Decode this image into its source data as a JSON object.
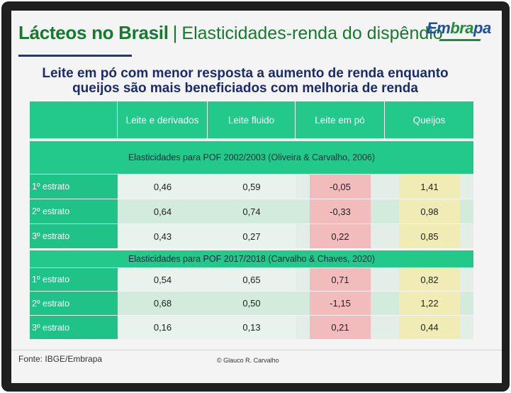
{
  "title": {
    "bold": "Lácteos no Brasil",
    "separator": "|",
    "light": "Elasticidades-renda do dispêndio"
  },
  "logo": {
    "text_main": "Em",
    "text_accent": "bra",
    "text_end": "pa"
  },
  "subtitle": {
    "line1": "Leite em pó com menor resposta a aumento de renda enquanto",
    "line2": "queijos são mais beneficiados com melhoria de renda"
  },
  "table": {
    "headers": [
      "Leite e derivados",
      "Leite fluido",
      "Leite em pó",
      "Queijos"
    ],
    "section1": {
      "title": "Elasticidades para POF 2002/2003 (Oliveira & Carvalho, 2006)",
      "rows": [
        {
          "label": "1º estrato",
          "values": [
            "0,46",
            "0,59",
            "-0,05",
            "1,41"
          ]
        },
        {
          "label": "2º estrato",
          "values": [
            "0,64",
            "0,74",
            "-0,33",
            "0,98"
          ]
        },
        {
          "label": "3º estrato",
          "values": [
            "0,43",
            "0,27",
            "0,22",
            "0,85"
          ]
        }
      ]
    },
    "section2": {
      "title": "Elasticidades para POF 2017/2018 (Carvalho & Chaves, 2020)",
      "rows": [
        {
          "label": "1º estrato",
          "values": [
            "0,54",
            "0,65",
            "0,71",
            "0,82"
          ]
        },
        {
          "label": "2º estrato",
          "values": [
            "0,68",
            "0,50",
            "-1,15",
            "1,22"
          ]
        },
        {
          "label": "3º estrato",
          "values": [
            "0,16",
            "0,13",
            "0,21",
            "0,44"
          ]
        }
      ]
    }
  },
  "footer": {
    "source": "Fonte: IBGE/Embrapa",
    "credit": "© Glauco R. Carvalho"
  },
  "colors": {
    "header_green": "#22c98a",
    "title_green": "#157a2e",
    "subtitle_navy": "#1a2c6b",
    "negative_highlight": "#f2bcbc",
    "positive_highlight": "#f1ebb5"
  }
}
